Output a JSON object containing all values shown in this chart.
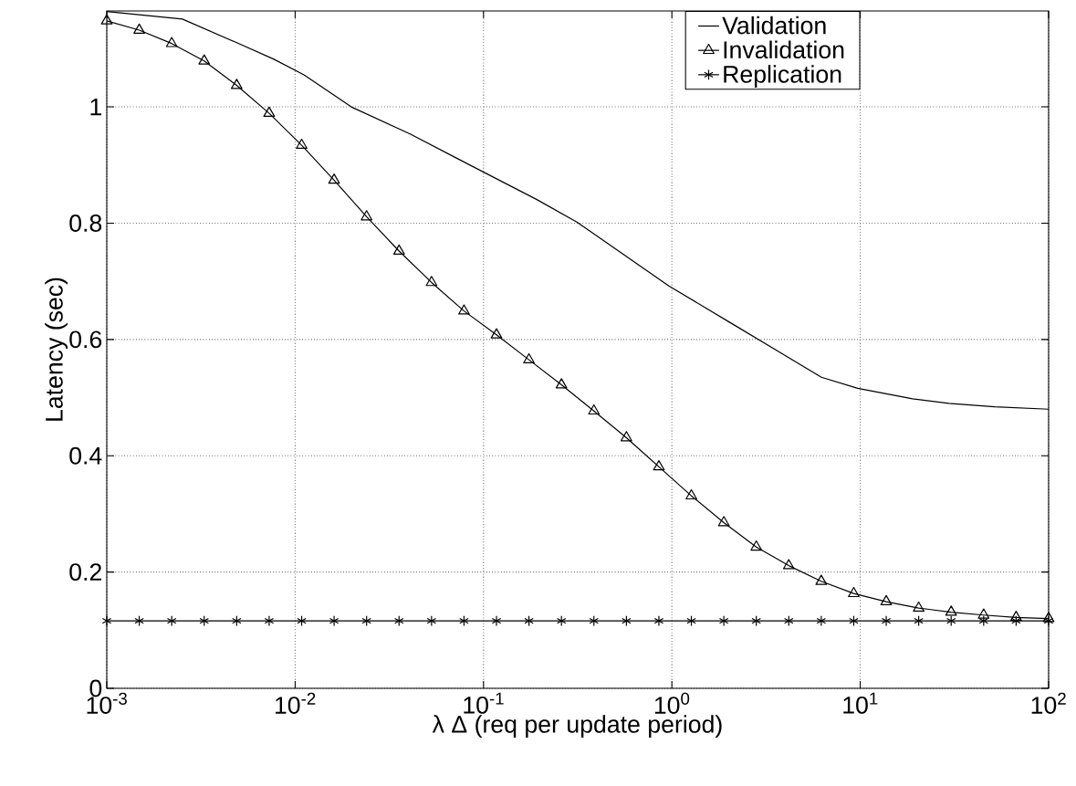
{
  "chart_data": {
    "type": "line",
    "xlabel": "λ Δ (req per update period)",
    "ylabel": "Latency (sec)",
    "log": "x",
    "grid": true,
    "legend": "top right",
    "line_style": "solid",
    "xlim": [
      0.001,
      100
    ],
    "ylim": [
      0,
      1.165
    ],
    "xticks": [
      {
        "value": 0.001,
        "label": "10$^{-3}$"
      },
      {
        "value": 0.01,
        "label": "10$^{-2}$"
      },
      {
        "value": 0.1,
        "label": "10$^{-1}$"
      },
      {
        "value": 1,
        "label": "10$^{0}$"
      },
      {
        "value": 10,
        "label": "10$^{1}$"
      },
      {
        "value": 100,
        "label": "10$^{2}$"
      }
    ],
    "yticks": [
      0,
      0.2,
      0.4,
      0.6,
      0.8,
      1
    ],
    "series": [
      {
        "name": "Validation",
        "color": "#000000",
        "marker": "none",
        "x": [
          0.001,
          0.00252,
          0.00493,
          0.00771,
          0.01114,
          0.01986,
          0.041,
          0.0718,
          0.191,
          0.313,
          0.964,
          2.04,
          3.56,
          6.22,
          9.7,
          18.97,
          29.6,
          51.8,
          100
        ],
        "values": [
          1.164,
          1.151,
          1.11,
          1.082,
          1.055,
          1.0,
          0.953,
          0.912,
          0.841,
          0.802,
          0.692,
          0.629,
          0.582,
          0.535,
          0.516,
          0.498,
          0.49,
          0.484,
          0.48
        ]
      },
      {
        "name": "Invalidation",
        "color": "#000000",
        "marker": "triangle",
        "x": [
          0.001,
          0.001487,
          0.002212,
          0.00329,
          0.004894,
          0.007279,
          0.01083,
          0.0161,
          0.02395,
          0.03562,
          0.05298,
          0.0788,
          0.1172,
          0.1743,
          0.2593,
          0.3857,
          0.5736,
          0.8532,
          1.269,
          1.888,
          2.807,
          4.175,
          6.21,
          9.237,
          13.74,
          20.43,
          30.39,
          45.2,
          67.23,
          100
        ],
        "values": [
          1.148,
          1.132,
          1.109,
          1.079,
          1.037,
          0.989,
          0.934,
          0.874,
          0.811,
          0.752,
          0.698,
          0.649,
          0.608,
          0.565,
          0.522,
          0.477,
          0.431,
          0.381,
          0.331,
          0.285,
          0.243,
          0.211,
          0.184,
          0.163,
          0.149,
          0.138,
          0.131,
          0.126,
          0.122,
          0.12
        ]
      },
      {
        "name": "Replication",
        "color": "#000000",
        "marker": "cross",
        "x": [
          0.001,
          0.001487,
          0.002212,
          0.00329,
          0.004894,
          0.007279,
          0.01083,
          0.0161,
          0.02395,
          0.03562,
          0.05298,
          0.0788,
          0.1172,
          0.1743,
          0.2593,
          0.3857,
          0.5736,
          0.8532,
          1.269,
          1.888,
          2.807,
          4.175,
          6.21,
          9.237,
          13.74,
          20.43,
          30.39,
          45.2,
          67.23,
          100
        ],
        "values": [
          0.116,
          0.116,
          0.116,
          0.116,
          0.116,
          0.116,
          0.116,
          0.116,
          0.116,
          0.116,
          0.116,
          0.116,
          0.116,
          0.116,
          0.116,
          0.116,
          0.116,
          0.116,
          0.116,
          0.116,
          0.116,
          0.116,
          0.116,
          0.116,
          0.116,
          0.116,
          0.116,
          0.116,
          0.116,
          0.116
        ]
      }
    ]
  }
}
